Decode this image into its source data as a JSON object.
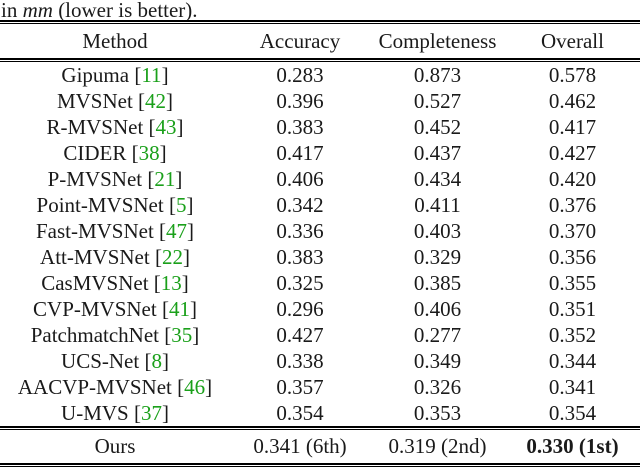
{
  "caption": {
    "prefix": "in ",
    "italic_term": "mm",
    "suffix": " (lower is better)."
  },
  "colors": {
    "cite_link_green": "#1aa01a",
    "text": "#1a1a1a",
    "rule": "#000000"
  },
  "table": {
    "headers": [
      "Method",
      "Accuracy",
      "Completeness",
      "Overall"
    ],
    "rows": [
      {
        "method": "Gipuma",
        "cite": "11",
        "accuracy": "0.283",
        "completeness": "0.873",
        "overall": "0.578"
      },
      {
        "method": "MVSNet",
        "cite": "42",
        "accuracy": "0.396",
        "completeness": "0.527",
        "overall": "0.462"
      },
      {
        "method": "R-MVSNet",
        "cite": "43",
        "accuracy": "0.383",
        "completeness": "0.452",
        "overall": "0.417"
      },
      {
        "method": "CIDER",
        "cite": "38",
        "accuracy": "0.417",
        "completeness": "0.437",
        "overall": "0.427"
      },
      {
        "method": "P-MVSNet",
        "cite": "21",
        "accuracy": "0.406",
        "completeness": "0.434",
        "overall": "0.420"
      },
      {
        "method": "Point-MVSNet",
        "cite": "5",
        "accuracy": "0.342",
        "completeness": "0.411",
        "overall": "0.376"
      },
      {
        "method": "Fast-MVSNet",
        "cite": "47",
        "accuracy": "0.336",
        "completeness": "0.403",
        "overall": "0.370"
      },
      {
        "method": "Att-MVSNet",
        "cite": "22",
        "accuracy": "0.383",
        "completeness": "0.329",
        "overall": "0.356"
      },
      {
        "method": "CasMVSNet",
        "cite": "13",
        "accuracy": "0.325",
        "completeness": "0.385",
        "overall": "0.355"
      },
      {
        "method": "CVP-MVSNet",
        "cite": "41",
        "accuracy": "0.296",
        "completeness": "0.406",
        "overall": "0.351"
      },
      {
        "method": "PatchmatchNet",
        "cite": "35",
        "accuracy": "0.427",
        "completeness": "0.277",
        "overall": "0.352"
      },
      {
        "method": "UCS-Net",
        "cite": "8",
        "accuracy": "0.338",
        "completeness": "0.349",
        "overall": "0.344"
      },
      {
        "method": "AACVP-MVSNet",
        "cite": "46",
        "accuracy": "0.357",
        "completeness": "0.326",
        "overall": "0.341"
      },
      {
        "method": "U-MVS",
        "cite": "37",
        "accuracy": "0.354",
        "completeness": "0.353",
        "overall": "0.354"
      }
    ],
    "ours": {
      "label": "Ours",
      "accuracy": "0.341 (6th)",
      "completeness": "0.319 (2nd)",
      "overall": "0.330 (1st)"
    }
  }
}
